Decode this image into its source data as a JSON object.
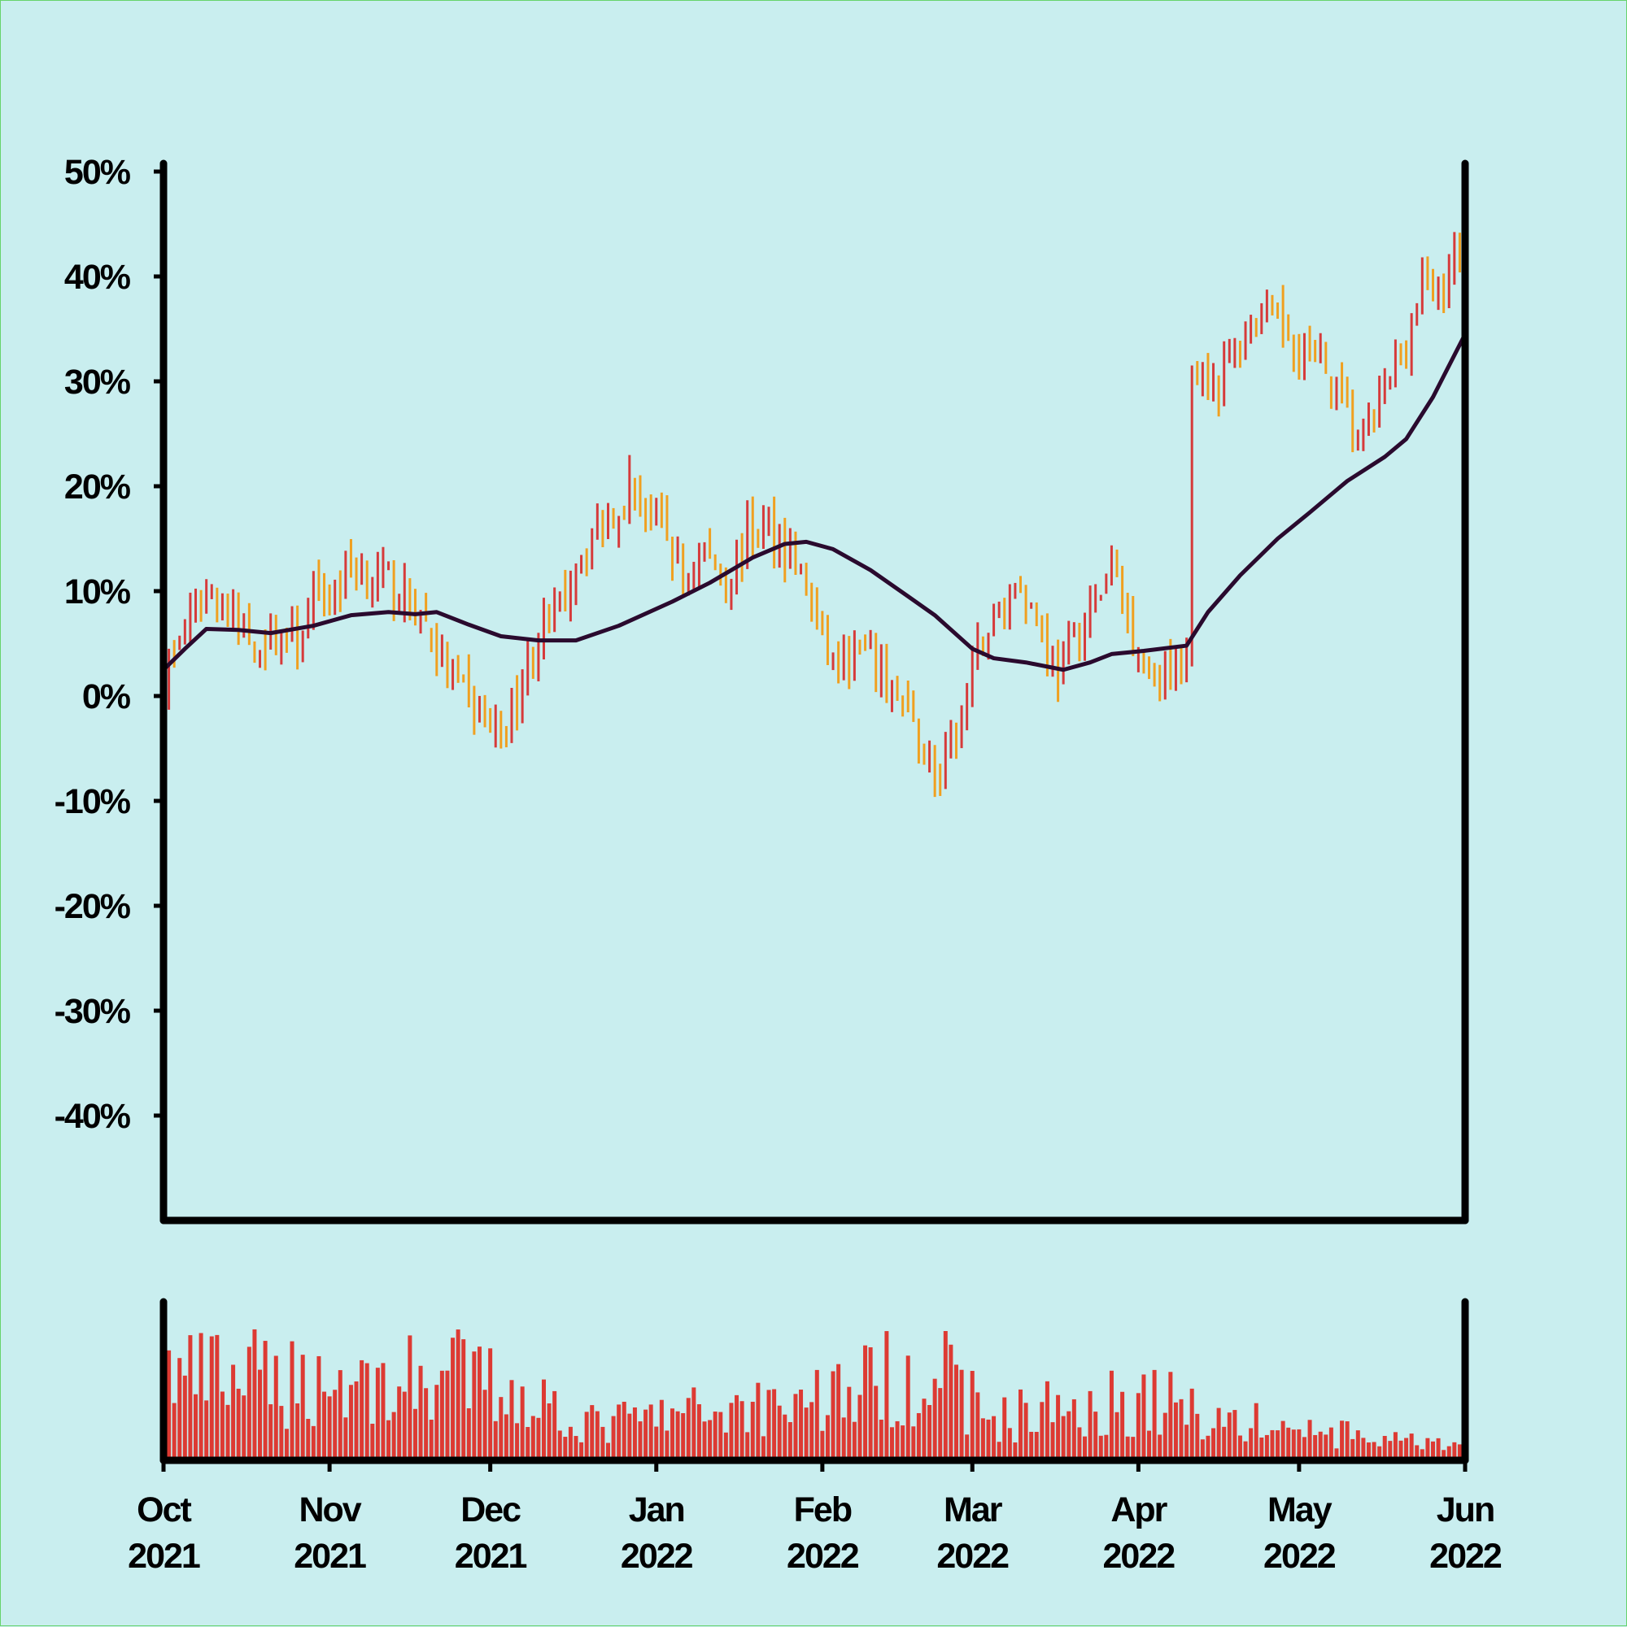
{
  "colors": {
    "background": "#c9eeef",
    "up": "#d63a3a",
    "down": "#f0a020",
    "moving_average": "#2a0a2e",
    "volume": "#dd3a33",
    "axis": "#000000"
  },
  "chart_data": {
    "type": "ohlc",
    "title": "",
    "xlabel": "",
    "ylabel": "",
    "price_axis": {
      "ylim": [
        -50,
        50
      ],
      "ticks": [
        50,
        40,
        30,
        20,
        10,
        0,
        -10,
        -20,
        -30,
        -40
      ],
      "tick_labels": [
        "50%",
        "40%",
        "30%",
        "20%",
        "10%",
        "0%",
        "-10%",
        "-20%",
        "-30%",
        "-40%"
      ]
    },
    "time_axis": {
      "range": [
        "2021-10-01",
        "2022-06-01"
      ],
      "ticks": [
        "2021-10-01",
        "2021-11-01",
        "2021-12-01",
        "2022-01-01",
        "2022-02-01",
        "2022-03-01",
        "2022-04-01",
        "2022-05-01",
        "2022-06-01"
      ],
      "tick_labels": [
        {
          "month": "Oct",
          "year": "2021"
        },
        {
          "month": "Nov",
          "year": "2021"
        },
        {
          "month": "Dec",
          "year": "2021"
        },
        {
          "month": "Jan",
          "year": "2022"
        },
        {
          "month": "Feb",
          "year": "2022"
        },
        {
          "month": "Mar",
          "year": "2022"
        },
        {
          "month": "Apr",
          "year": "2022"
        },
        {
          "month": "May",
          "year": "2022"
        },
        {
          "month": "Jun",
          "year": "2022"
        }
      ]
    },
    "close_series": [
      [
        "2021-10-01",
        2
      ],
      [
        "2021-10-05",
        6
      ],
      [
        "2021-10-08",
        9
      ],
      [
        "2021-10-11",
        10
      ],
      [
        "2021-10-14",
        7
      ],
      [
        "2021-10-18",
        5
      ],
      [
        "2021-10-22",
        6
      ],
      [
        "2021-10-26",
        5
      ],
      [
        "2021-10-29",
        9
      ],
      [
        "2021-11-02",
        10
      ],
      [
        "2021-11-05",
        13
      ],
      [
        "2021-11-09",
        11
      ],
      [
        "2021-11-12",
        11
      ],
      [
        "2021-11-16",
        9
      ],
      [
        "2021-11-19",
        7
      ],
      [
        "2021-11-22",
        3
      ],
      [
        "2021-11-26",
        0
      ],
      [
        "2021-11-30",
        -2
      ],
      [
        "2021-12-03",
        -4
      ],
      [
        "2021-12-06",
        0
      ],
      [
        "2021-12-10",
        6
      ],
      [
        "2021-12-14",
        8
      ],
      [
        "2021-12-17",
        13
      ],
      [
        "2021-12-21",
        16
      ],
      [
        "2021-12-24",
        18
      ],
      [
        "2021-12-27",
        20
      ],
      [
        "2021-12-30",
        18
      ],
      [
        "2022-01-03",
        15
      ],
      [
        "2022-01-06",
        11
      ],
      [
        "2022-01-10",
        14
      ],
      [
        "2022-01-14",
        11
      ],
      [
        "2022-01-18",
        15
      ],
      [
        "2022-01-22",
        16
      ],
      [
        "2022-01-26",
        14
      ],
      [
        "2022-01-29",
        10
      ],
      [
        "2022-02-01",
        5
      ],
      [
        "2022-02-04",
        2
      ],
      [
        "2022-02-08",
        4
      ],
      [
        "2022-02-12",
        2
      ],
      [
        "2022-02-16",
        -1
      ],
      [
        "2022-02-20",
        -5
      ],
      [
        "2022-02-23",
        -9
      ],
      [
        "2022-02-25",
        -5
      ],
      [
        "2022-02-28",
        0
      ],
      [
        "2022-03-03",
        6
      ],
      [
        "2022-03-07",
        9
      ],
      [
        "2022-03-10",
        11
      ],
      [
        "2022-03-14",
        6
      ],
      [
        "2022-03-17",
        2
      ],
      [
        "2022-03-20",
        5
      ],
      [
        "2022-03-24",
        9
      ],
      [
        "2022-03-27",
        12
      ],
      [
        "2022-03-31",
        6
      ],
      [
        "2022-04-03",
        3
      ],
      [
        "2022-04-07",
        2
      ],
      [
        "2022-04-10",
        4
      ],
      [
        "2022-04-11",
        32
      ],
      [
        "2022-04-16",
        30
      ],
      [
        "2022-04-21",
        35
      ],
      [
        "2022-04-24",
        37
      ],
      [
        "2022-04-28",
        35
      ],
      [
        "2022-05-02",
        33
      ],
      [
        "2022-05-06",
        31
      ],
      [
        "2022-05-10",
        27
      ],
      [
        "2022-05-13",
        24
      ],
      [
        "2022-05-17",
        29
      ],
      [
        "2022-05-21",
        34
      ],
      [
        "2022-05-24",
        39
      ],
      [
        "2022-05-27",
        38
      ],
      [
        "2022-05-30",
        42
      ],
      [
        "2022-06-01",
        40
      ]
    ],
    "moving_average": [
      [
        "2021-10-01",
        2.5
      ],
      [
        "2021-10-05",
        4.5
      ],
      [
        "2021-10-09",
        6.4
      ],
      [
        "2021-10-15",
        6.3
      ],
      [
        "2021-10-21",
        6
      ],
      [
        "2021-10-29",
        6.7
      ],
      [
        "2021-11-05",
        7.7
      ],
      [
        "2021-11-12",
        8
      ],
      [
        "2021-11-17",
        7.8
      ],
      [
        "2021-11-21",
        8
      ],
      [
        "2021-11-27",
        6.8
      ],
      [
        "2021-12-03",
        5.7
      ],
      [
        "2021-12-10",
        5.3
      ],
      [
        "2021-12-17",
        5.3
      ],
      [
        "2021-12-25",
        6.7
      ],
      [
        "2022-01-04",
        9
      ],
      [
        "2022-01-11",
        10.8
      ],
      [
        "2022-01-19",
        13.2
      ],
      [
        "2022-01-25",
        14.5
      ],
      [
        "2022-01-29",
        14.7
      ],
      [
        "2022-02-03",
        14
      ],
      [
        "2022-02-10",
        12
      ],
      [
        "2022-02-17",
        9.5
      ],
      [
        "2022-02-22",
        7.7
      ],
      [
        "2022-03-01",
        4.5
      ],
      [
        "2022-03-05",
        3.6
      ],
      [
        "2022-03-11",
        3.2
      ],
      [
        "2022-03-18",
        2.5
      ],
      [
        "2022-03-23",
        3.2
      ],
      [
        "2022-03-27",
        4
      ],
      [
        "2022-04-02",
        4.3
      ],
      [
        "2022-04-10",
        4.8
      ],
      [
        "2022-04-14",
        8
      ],
      [
        "2022-04-20",
        11.5
      ],
      [
        "2022-04-27",
        15
      ],
      [
        "2022-05-03",
        17.5
      ],
      [
        "2022-05-10",
        20.5
      ],
      [
        "2022-05-17",
        22.8
      ],
      [
        "2022-05-21",
        24.5
      ],
      [
        "2022-05-26",
        28.5
      ],
      [
        "2022-06-01",
        34.5
      ]
    ],
    "volume_trend": [
      [
        "2021-10-01",
        0.62
      ],
      [
        "2021-10-20",
        0.6
      ],
      [
        "2021-11-10",
        0.56
      ],
      [
        "2021-11-25",
        0.62
      ],
      [
        "2021-12-10",
        0.46
      ],
      [
        "2021-12-20",
        0.26
      ],
      [
        "2022-01-10",
        0.36
      ],
      [
        "2022-02-01",
        0.48
      ],
      [
        "2022-02-22",
        0.68
      ],
      [
        "2022-03-05",
        0.3
      ],
      [
        "2022-03-20",
        0.42
      ],
      [
        "2022-04-05",
        0.44
      ],
      [
        "2022-04-20",
        0.28
      ],
      [
        "2022-05-10",
        0.18
      ],
      [
        "2022-06-01",
        0.08
      ]
    ]
  }
}
